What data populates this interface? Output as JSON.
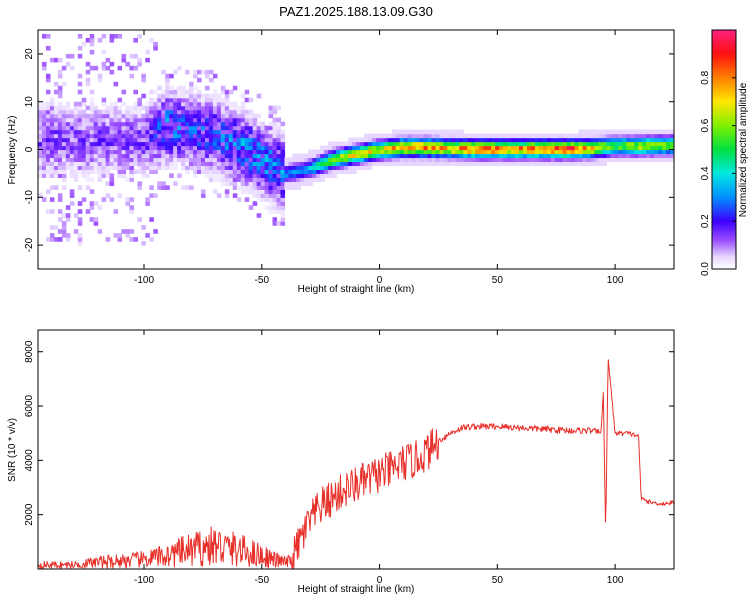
{
  "figure_title": "PAZ1.2025.188.13.09.G30",
  "chart_data": [
    {
      "type": "heatmap",
      "title": "PAZ1.2025.188.13.09.G30",
      "xlabel": "Height of straight line (km)",
      "ylabel": "Frequency (Hz)",
      "xlim": [
        -145,
        125
      ],
      "ylim": [
        -25,
        25
      ],
      "xticks": [
        -100,
        -50,
        0,
        50,
        100
      ],
      "yticks": [
        -20,
        -10,
        0,
        10,
        20
      ],
      "grid": false,
      "colorbar": {
        "label": "Normalized spectral amplitude",
        "range": [
          0,
          1
        ],
        "ticks": [
          0.0,
          0.2,
          0.4,
          0.6,
          0.8
        ],
        "tick_labels": [
          "0.0",
          "0.2",
          "0.4",
          "0.6",
          "0.8"
        ]
      },
      "ridge": {
        "x": [
          -100,
          -90,
          -80,
          -70,
          -60,
          -50,
          -40,
          -30,
          -20,
          -10,
          0,
          10,
          20,
          30,
          40,
          50,
          60,
          70,
          80,
          90,
          100,
          110,
          125
        ],
        "frequency": [
          2,
          5,
          4,
          3,
          1,
          -2,
          -5,
          -4,
          -2,
          -1,
          0,
          0.5,
          0.5,
          0.3,
          0.2,
          0.2,
          0.2,
          0.2,
          0.2,
          0.3,
          0.8,
          0.8,
          1.0
        ],
        "peak_amplitude": [
          0.15,
          0.3,
          0.25,
          0.25,
          0.3,
          0.3,
          0.3,
          0.35,
          0.6,
          0.7,
          0.7,
          0.8,
          0.8,
          0.75,
          0.85,
          0.85,
          0.8,
          0.85,
          0.9,
          0.75,
          0.55,
          0.65,
          0.6
        ]
      }
    },
    {
      "type": "line",
      "xlabel": "Height of straight line (km)",
      "ylabel": "SNR (10 * v/v)",
      "xlim": [
        -145,
        125
      ],
      "ylim": [
        0,
        8800
      ],
      "xticks": [
        -100,
        -50,
        0,
        50,
        100
      ],
      "yticks": [
        2000,
        4000,
        6000,
        8000
      ],
      "grid": false,
      "color": "#e8302a",
      "series": [
        {
          "x": [
            -145,
            -130,
            -120,
            -110,
            -100,
            -90,
            -80,
            -70,
            -60,
            -50,
            -45,
            -40,
            -37,
            -35,
            -30,
            -25,
            -20,
            -15,
            -10,
            -5,
            0,
            5,
            10,
            15,
            20,
            25,
            30,
            35,
            40,
            50,
            60,
            70,
            80,
            90,
            94,
            95,
            96,
            97,
            100,
            105,
            110,
            111,
            115,
            120,
            125
          ],
          "y": [
            150,
            150,
            250,
            300,
            350,
            500,
            700,
            850,
            700,
            500,
            350,
            250,
            300,
            800,
            1700,
            2300,
            2600,
            2900,
            3100,
            3300,
            3500,
            3650,
            3900,
            4000,
            4300,
            4700,
            5000,
            5200,
            5250,
            5250,
            5200,
            5150,
            5100,
            5100,
            5000,
            6500,
            1200,
            7800,
            5000,
            5000,
            4900,
            2600,
            2450,
            2400,
            2450
          ]
        }
      ]
    }
  ]
}
